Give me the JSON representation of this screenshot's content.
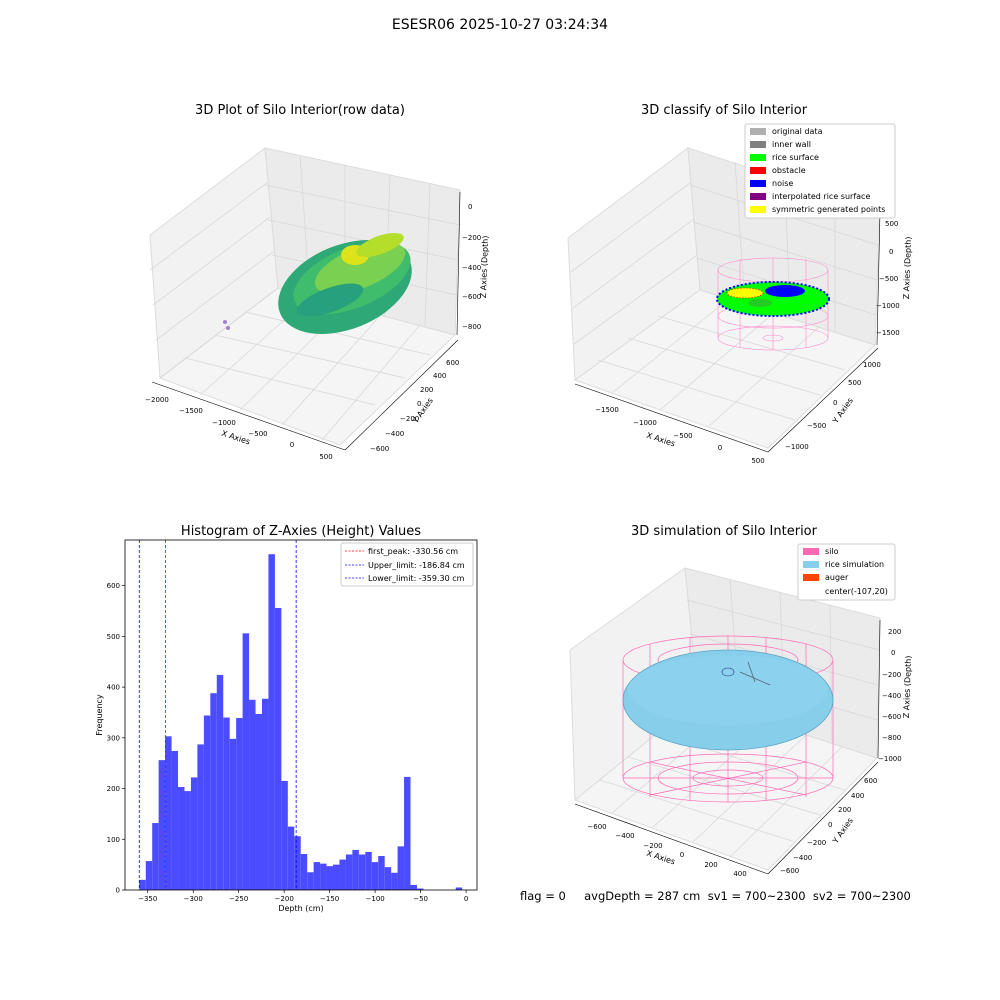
{
  "figure": {
    "suptitle": "ESESR06 2025-10-27 03:24:34",
    "flag_text": "flag = 0     avgDepth = 287 cm  sv1 = 700~2300  sv2 = 700~2300"
  },
  "colors": {
    "histogram_bar": "#4b4bff",
    "first_peak_line": "#ff0000",
    "limit_line": "#0000ff",
    "silo_wire": "#ff69b4",
    "rice_sim": "#87ceeb",
    "auger": "#ff4500"
  },
  "plots3d": [
    {
      "title": "3D Plot of Silo Interior(row data)",
      "xlabel": "X Axies",
      "ylabel": "Y Axies",
      "zlabel": "Z Axies (Depth)",
      "xticks": [
        "−2000",
        "−1500",
        "−1000",
        "−500",
        "0",
        "500"
      ],
      "yticks": [
        "−600",
        "−400",
        "−200",
        "0",
        "200",
        "400",
        "600"
      ],
      "zticks": [
        "0",
        "−200",
        "−400",
        "−600",
        "−800"
      ]
    },
    {
      "title": "3D classify of Silo Interior",
      "xlabel": "X Axies",
      "ylabel": "Y Axies",
      "zlabel": "Z Axies (Depth)",
      "xticks": [
        "−1500",
        "−1000",
        "−500",
        "0",
        "500"
      ],
      "yticks": [
        "−1000",
        "−500",
        "0",
        "500",
        "1000"
      ],
      "zticks": [
        "500",
        "0",
        "−500",
        "−1000",
        "−1500"
      ],
      "legend": [
        {
          "label": "original data",
          "color": "#b0b0b0"
        },
        {
          "label": "inner wall",
          "color": "#808080"
        },
        {
          "label": "rice surface",
          "color": "#00ff00"
        },
        {
          "label": "obstacle",
          "color": "#ff0000"
        },
        {
          "label": "noise",
          "color": "#0000ff"
        },
        {
          "label": "interpolated rice surface",
          "color": "#800080"
        },
        {
          "label": "symmetric generated points",
          "color": "#ffff00"
        }
      ]
    },
    {
      "title": "3D simulation of Silo Interior",
      "xlabel": "X Axies",
      "ylabel": "Y Axies",
      "zlabel": "Z Axies (Depth)",
      "xticks": [
        "−600",
        "−400",
        "−200",
        "0",
        "200",
        "400"
      ],
      "yticks": [
        "−600",
        "−400",
        "−200",
        "0",
        "200",
        "400",
        "600"
      ],
      "zticks": [
        "200",
        "0",
        "−200",
        "−400",
        "−600",
        "−800",
        "−1000"
      ],
      "legend": [
        {
          "label": "silo",
          "color": "#ff69b4"
        },
        {
          "label": "rice simulation",
          "color": "#87ceeb"
        },
        {
          "label": "auger",
          "color": "#ff4500"
        },
        {
          "label": "center(-107,20)",
          "color": null
        }
      ]
    }
  ],
  "chart_data": {
    "type": "bar",
    "title": "Histogram of Z-Axies (Height) Values",
    "xlabel": "Depth (cm)",
    "ylabel": "Frequency",
    "xlim": [
      -375,
      12
    ],
    "ylim": [
      0,
      690
    ],
    "xticks": [
      -350,
      -300,
      -250,
      -200,
      -150,
      -100,
      -50,
      0
    ],
    "xtick_labels": [
      "−350",
      "−300",
      "−250",
      "−200",
      "−150",
      "−100",
      "−50",
      "0"
    ],
    "yticks": [
      0,
      100,
      200,
      300,
      400,
      500,
      600
    ],
    "bin_width": 7.1,
    "bin_edges_start": -359.3,
    "values": [
      20,
      57,
      132,
      256,
      303,
      274,
      203,
      195,
      222,
      287,
      344,
      388,
      424,
      340,
      298,
      339,
      506,
      375,
      347,
      377,
      662,
      556,
      215,
      125,
      106,
      71,
      35,
      55,
      52,
      47,
      50,
      60,
      70,
      79,
      70,
      75,
      55,
      67,
      45,
      34,
      86,
      223,
      10,
      3,
      0,
      0,
      0,
      0,
      0,
      5,
      0
    ],
    "vlines": [
      {
        "name": "first_peak: -330.56 cm",
        "x": -330.56,
        "color": "#ff0000"
      },
      {
        "name": "Upper_limit: -186.84 cm",
        "x": -186.84,
        "color": "#0000ff"
      },
      {
        "name": "Lower_limit: -359.30 cm",
        "x": -359.3,
        "color": "#0000ff"
      }
    ],
    "legend_position": "upper right"
  }
}
